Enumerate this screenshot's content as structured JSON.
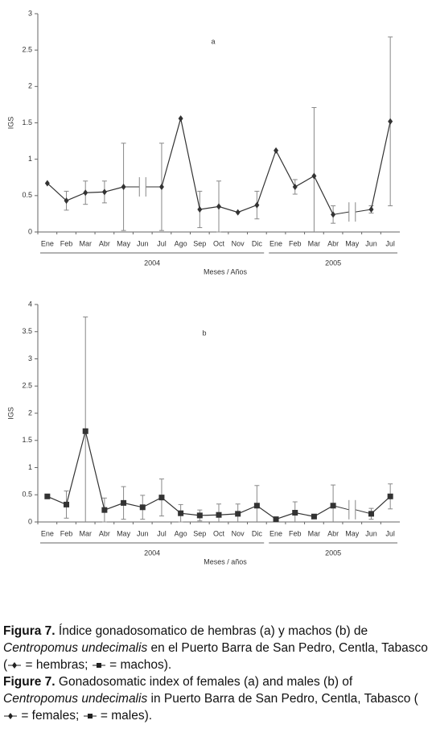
{
  "chart_data": [
    {
      "type": "line",
      "annotation": "a",
      "y_label": "IGS",
      "x_label": "Meses / Años",
      "categories": [
        "Ene",
        "Feb",
        "Mar",
        "Abr",
        "May",
        "Jun",
        "Jul",
        "Ago",
        "Sep",
        "Oct",
        "Nov",
        "Dic",
        "Ene",
        "Feb",
        "Mar",
        "Abr",
        "May",
        "Jun",
        "Jul"
      ],
      "year_labels": [
        "2004",
        "2005"
      ],
      "ylim": [
        0,
        3
      ],
      "yticks": [
        0,
        0.5,
        1,
        1.5,
        2,
        2.5,
        3
      ],
      "marker": "diamond",
      "series": [
        {
          "color": "#333333",
          "values": [
            0.67,
            0.43,
            0.54,
            0.55,
            0.62,
            null,
            0.62,
            1.56,
            0.31,
            0.35,
            0.27,
            0.37,
            1.12,
            0.62,
            0.77,
            0.24,
            null,
            0.31,
            1.52
          ],
          "errors": [
            null,
            0.13,
            0.16,
            0.15,
            0.6,
            null,
            0.6,
            null,
            0.25,
            0.35,
            null,
            0.19,
            null,
            0.1,
            0.94,
            0.12,
            null,
            0.05,
            1.16
          ]
        }
      ]
    },
    {
      "type": "line",
      "annotation": "b",
      "y_label": "IGS",
      "x_label": "Meses / años",
      "categories": [
        "Ene",
        "Feb",
        "Mar",
        "Abr",
        "May",
        "Jun",
        "Jul",
        "Ago",
        "Sep",
        "Oct",
        "Nov",
        "Dic",
        "Ene",
        "Feb",
        "Mar",
        "Abr",
        "May",
        "Jun",
        "Jul"
      ],
      "year_labels": [
        "2004",
        "2005"
      ],
      "ylim": [
        0,
        4
      ],
      "yticks": [
        0,
        0.5,
        1,
        1.5,
        2,
        2.5,
        3,
        3.5,
        4
      ],
      "marker": "square",
      "series": [
        {
          "color": "#333333",
          "values": [
            0.47,
            0.32,
            1.67,
            0.22,
            0.35,
            0.27,
            0.45,
            0.16,
            0.12,
            0.13,
            0.15,
            0.3,
            0.05,
            0.17,
            0.1,
            0.3,
            null,
            0.15,
            0.47
          ],
          "errors": [
            null,
            0.25,
            2.1,
            0.22,
            0.3,
            0.22,
            0.34,
            0.16,
            0.1,
            0.2,
            0.18,
            0.37,
            null,
            0.2,
            null,
            0.38,
            null,
            0.1,
            0.23
          ]
        }
      ]
    }
  ],
  "caption_es": {
    "label": "Figura 7.",
    "text": "Índice gonadosomatico de hembras (a) y machos (b) de",
    "species": "Centropomus undecimalis",
    "text2": "en el Puerto Barra de San Pedro, Centla, Tabasco (",
    "females": "= hembras;",
    "males": "= machos)."
  },
  "caption_en": {
    "label": "Figure 7.",
    "text": "Gonadosomatic index of females (a) and males (b) of",
    "species": "Centropomus undecimalis",
    "text2": "in Puerto Barra de San Pedro, Centla, Tabasco (",
    "females": "= females;",
    "males": "= males)."
  }
}
